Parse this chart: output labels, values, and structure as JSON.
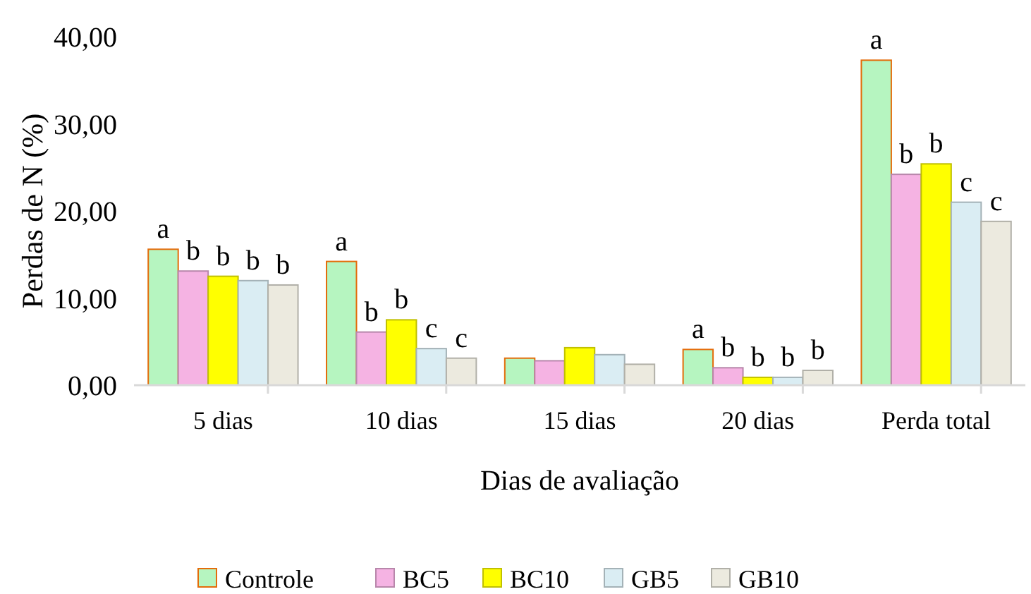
{
  "chart_data": {
    "type": "bar",
    "xlabel": "Dias de avaliação",
    "ylabel": "Perdas de N (%)",
    "categories": [
      "5 dias",
      "10 dias",
      "15 dias",
      "20 dias",
      "Perda total"
    ],
    "ylim": [
      0,
      40
    ],
    "yticks": [
      {
        "value": 0,
        "label": "0,00"
      },
      {
        "value": 10,
        "label": "10,00"
      },
      {
        "value": 20,
        "label": "20,00"
      },
      {
        "value": 30,
        "label": "30,00"
      },
      {
        "value": 40,
        "label": "40,00"
      }
    ],
    "grid": false,
    "legend": "bottom",
    "series": [
      {
        "name": "Controle",
        "color": "#b6f5c0",
        "values": [
          15.6,
          14.2,
          3.1,
          4.1,
          37.3
        ],
        "value_labels": [
          "a",
          "a",
          null,
          "a",
          "a"
        ]
      },
      {
        "name": "BC5",
        "color": "#f5b3e3",
        "values": [
          13.1,
          6.1,
          2.8,
          2.0,
          24.2
        ],
        "value_labels": [
          "b",
          "b",
          null,
          "b",
          "b"
        ]
      },
      {
        "name": "BC10",
        "color": "#ffff00",
        "values": [
          12.5,
          7.5,
          4.3,
          0.9,
          25.4
        ],
        "value_labels": [
          "b",
          "b",
          null,
          "b",
          "b"
        ]
      },
      {
        "name": "GB5",
        "color": "#daedf3",
        "values": [
          12.0,
          4.2,
          3.5,
          0.9,
          21.0
        ],
        "value_labels": [
          "b",
          "c",
          null,
          "b",
          "c"
        ]
      },
      {
        "name": "GB10",
        "color": "#eceadf",
        "values": [
          11.5,
          3.1,
          2.4,
          1.7,
          18.8
        ],
        "value_labels": [
          "b",
          "c",
          null,
          "b",
          "c"
        ]
      }
    ]
  }
}
